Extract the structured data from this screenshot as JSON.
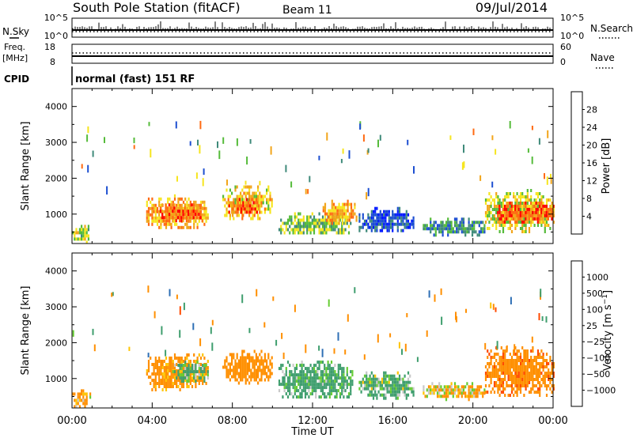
{
  "header": {
    "station": "South Pole Station (fitACF)",
    "beam": "Beam 11",
    "date": "09/Jul/2014"
  },
  "panels": {
    "nsky_label": "N.Sky",
    "nsky_ticks": [
      "10^5",
      "10^0"
    ],
    "nsearch_label": "N.Search",
    "nsearch_ticks": [
      "10^5",
      "10^0"
    ],
    "freq_label": "Freq.",
    "freq_unit": "[MHz]",
    "freq_ticks": [
      "18",
      "8"
    ],
    "nave_label": "Nave",
    "nave_ticks": [
      "60",
      "0"
    ],
    "cpid_label": "CPID",
    "cpid_text": "normal (fast) 151 RF"
  },
  "colors": {
    "power_scale": [
      "#0018ff",
      "#1d4fd1",
      "#3f8a7a",
      "#55bb3a",
      "#f6e51f",
      "#f2a51a",
      "#ff6a12",
      "#ff0000"
    ],
    "velocity_scale": [
      "#ff0000",
      "#ff4a00",
      "#ff8f00",
      "#ffc400",
      "#c8c8c8",
      "#66cc33",
      "#3f9e6e",
      "#2e6fb5",
      "#1d2fd4"
    ]
  },
  "chart_data": [
    {
      "type": "heatmap",
      "name": "power",
      "title": "Power [dB]",
      "ylabel": "Slant Range [km]",
      "xlabel": "Time UT",
      "xlim": [
        0,
        24
      ],
      "ylim": [
        180,
        4500
      ],
      "x_ticks": [
        "00:00",
        "04:00",
        "08:00",
        "12:00",
        "16:00",
        "20:00",
        "00:00"
      ],
      "y_ticks": [
        "1000",
        "2000",
        "3000",
        "4000"
      ],
      "colorbar_ticks": [
        "4",
        "8",
        "12",
        "16",
        "20",
        "24",
        "28"
      ],
      "colorbar_range": [
        0,
        32
      ],
      "regions": [
        {
          "t0": 0.0,
          "t1": 0.9,
          "r0": 250,
          "r1": 700,
          "val": 16
        },
        {
          "t0": 3.7,
          "t1": 6.8,
          "r0": 600,
          "r1": 1550,
          "val": 22
        },
        {
          "t0": 4.2,
          "t1": 6.5,
          "r0": 800,
          "r1": 1300,
          "val": 26
        },
        {
          "t0": 7.5,
          "t1": 10.0,
          "r0": 900,
          "r1": 1800,
          "val": 20
        },
        {
          "t0": 7.8,
          "t1": 9.3,
          "r0": 1000,
          "r1": 1450,
          "val": 26
        },
        {
          "t0": 10.3,
          "t1": 13.9,
          "r0": 450,
          "r1": 1050,
          "val": 14
        },
        {
          "t0": 12.5,
          "t1": 14.2,
          "r0": 700,
          "r1": 1400,
          "val": 22
        },
        {
          "t0": 14.3,
          "t1": 17.0,
          "r0": 500,
          "r1": 1200,
          "val": 6
        },
        {
          "t0": 17.5,
          "t1": 20.6,
          "r0": 450,
          "r1": 900,
          "val": 10
        },
        {
          "t0": 20.6,
          "t1": 24.0,
          "r0": 550,
          "r1": 1700,
          "val": 18
        },
        {
          "t0": 21.2,
          "t1": 24.0,
          "r0": 800,
          "r1": 1350,
          "val": 26
        }
      ]
    },
    {
      "type": "heatmap",
      "name": "velocity",
      "title": "Velocity [m s^-1]",
      "ylabel": "Slant Range [km]",
      "xlabel": "Time UT",
      "xlim": [
        0,
        24
      ],
      "ylim": [
        180,
        4500
      ],
      "x_ticks": [
        "00:00",
        "04:00",
        "08:00",
        "12:00",
        "16:00",
        "20:00",
        "00:00"
      ],
      "y_ticks": [
        "1000",
        "2000",
        "3000",
        "4000"
      ],
      "colorbar_ticks": [
        "1000",
        "500",
        "100",
        "25",
        "−25",
        "−100",
        "−500",
        "−1000"
      ],
      "regions": [
        {
          "t0": 0.0,
          "t1": 0.9,
          "r0": 250,
          "r1": 700,
          "val": -150
        },
        {
          "t0": 3.7,
          "t1": 6.8,
          "r0": 700,
          "r1": 1700,
          "val": -250
        },
        {
          "t0": 5.0,
          "t1": 6.8,
          "r0": 900,
          "r1": 1500,
          "val": 150
        },
        {
          "t0": 7.5,
          "t1": 10.0,
          "r0": 900,
          "r1": 1800,
          "val": -300
        },
        {
          "t0": 10.3,
          "t1": 14.0,
          "r0": 450,
          "r1": 1500,
          "val": 200
        },
        {
          "t0": 14.3,
          "t1": 17.0,
          "r0": 450,
          "r1": 1200,
          "val": 150
        },
        {
          "t0": 17.5,
          "t1": 20.6,
          "r0": 450,
          "r1": 900,
          "val": -120
        },
        {
          "t0": 20.6,
          "t1": 24.0,
          "r0": 550,
          "r1": 1900,
          "val": -350
        }
      ]
    }
  ]
}
